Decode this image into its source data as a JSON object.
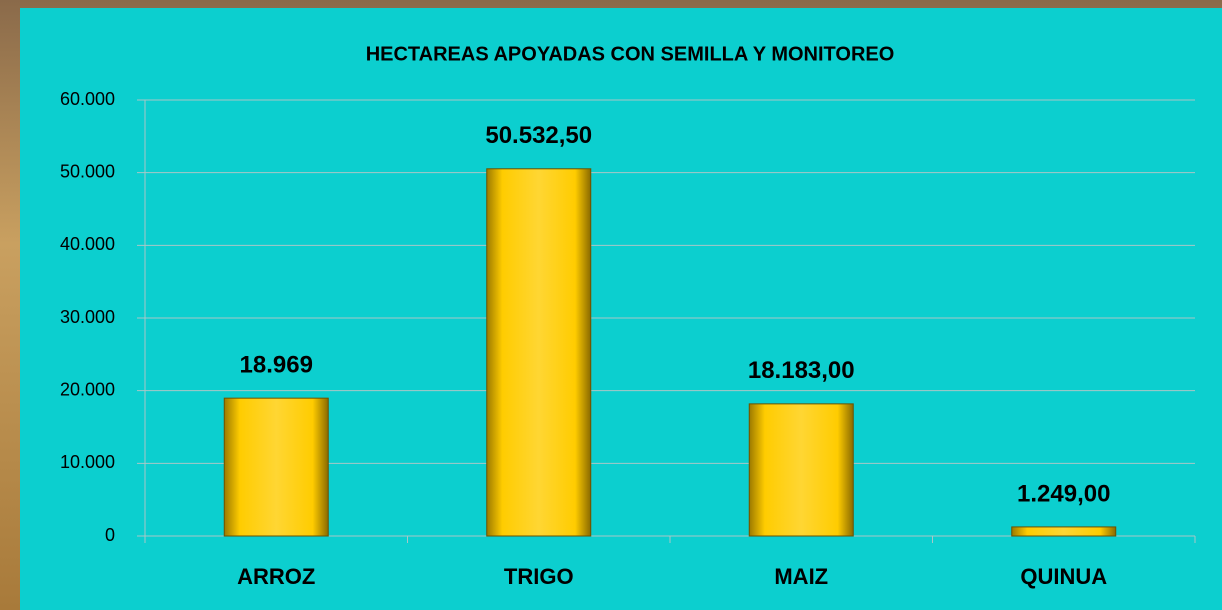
{
  "chart_data": {
    "type": "bar",
    "title": "HECTAREAS APOYADAS CON SEMILLA Y MONITOREO",
    "categories": [
      "ARROZ",
      "TRIGO",
      "MAIZ",
      "QUINUA"
    ],
    "values": [
      18969,
      50532.5,
      18183,
      1249
    ],
    "value_labels": [
      "18.969",
      "50.532,50",
      "18.183,00",
      "1.249,00"
    ],
    "color": "#ffcc00",
    "ylim": [
      0,
      60000
    ],
    "yticks": [
      0,
      {
        "value": 10000,
        "label": "10.000"
      },
      {
        "value": 20000,
        "label": "20.000"
      },
      {
        "value": 30000,
        "label": "30.000"
      },
      {
        "value": 40000,
        "label": "40.000"
      },
      {
        "value": 50000,
        "label": "50.000"
      },
      {
        "value": 60000,
        "label": "60.000"
      }
    ],
    "grid": true
  }
}
